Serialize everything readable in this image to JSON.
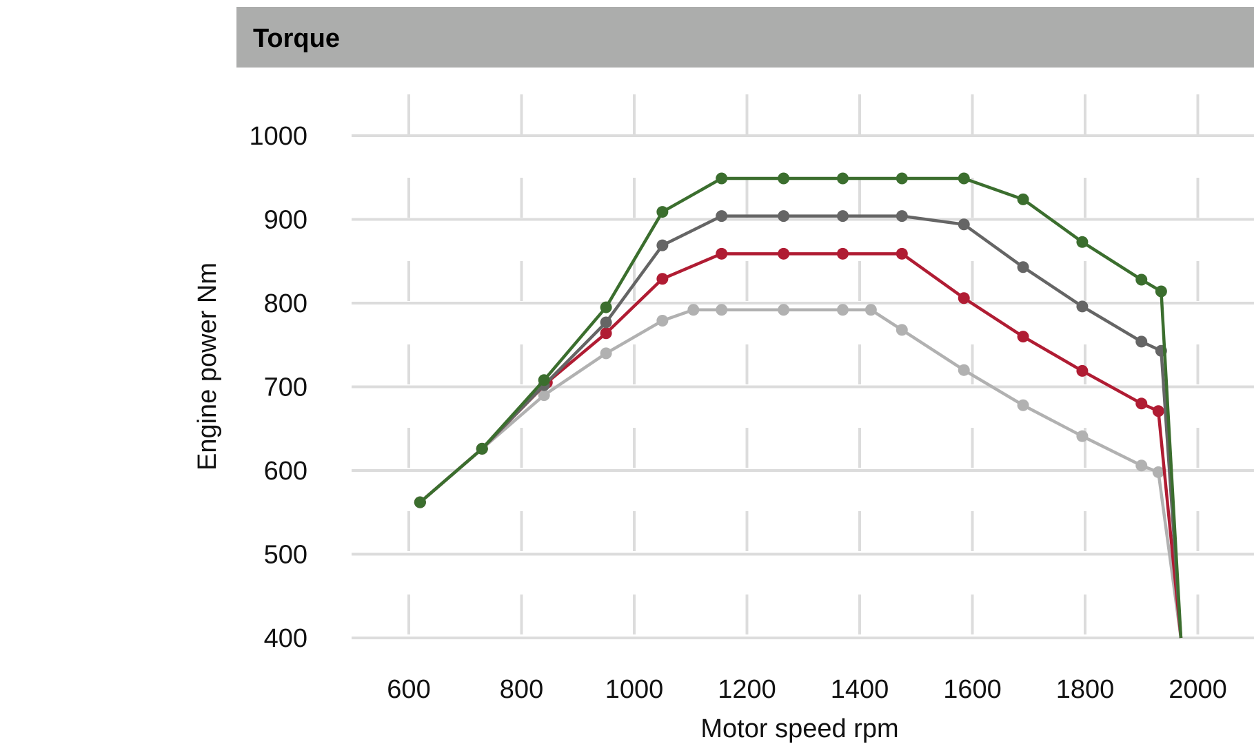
{
  "header": {
    "title": "Torque"
  },
  "chart_data": {
    "type": "line",
    "title": "Torque",
    "xlabel": "Motor speed rpm",
    "ylabel": "Engine power Nm",
    "xlim": [
      450,
      2100
    ],
    "ylim": [
      400,
      1050
    ],
    "x_ticks": [
      600,
      800,
      1000,
      1200,
      1400,
      1600,
      1800,
      2000
    ],
    "y_ticks": [
      400,
      500,
      600,
      700,
      800,
      900,
      1000
    ],
    "grid": true,
    "legend": "none",
    "series": [
      {
        "color": "#3b6e2e",
        "points": [
          [
            620,
            562
          ],
          [
            730,
            626
          ],
          [
            840,
            708
          ],
          [
            950,
            795
          ],
          [
            1050,
            909
          ],
          [
            1155,
            949
          ],
          [
            1265,
            949
          ],
          [
            1370,
            949
          ],
          [
            1475,
            949
          ],
          [
            1585,
            949
          ],
          [
            1690,
            924
          ],
          [
            1795,
            873
          ],
          [
            1900,
            828
          ],
          [
            1935,
            814
          ],
          [
            1970,
            400
          ]
        ]
      },
      {
        "color": "#656565",
        "points": [
          [
            620,
            562
          ],
          [
            730,
            626
          ],
          [
            840,
            702
          ],
          [
            950,
            777
          ],
          [
            1050,
            869
          ],
          [
            1155,
            904
          ],
          [
            1265,
            904
          ],
          [
            1370,
            904
          ],
          [
            1475,
            904
          ],
          [
            1585,
            894
          ],
          [
            1690,
            843
          ],
          [
            1795,
            796
          ],
          [
            1900,
            754
          ],
          [
            1935,
            743
          ],
          [
            1970,
            400
          ]
        ]
      },
      {
        "color": "#b01c33",
        "points": [
          [
            620,
            562
          ],
          [
            730,
            626
          ],
          [
            845,
            705
          ],
          [
            950,
            764
          ],
          [
            1050,
            829
          ],
          [
            1155,
            859
          ],
          [
            1265,
            859
          ],
          [
            1370,
            859
          ],
          [
            1475,
            859
          ],
          [
            1585,
            806
          ],
          [
            1690,
            760
          ],
          [
            1795,
            719
          ],
          [
            1900,
            680
          ],
          [
            1930,
            671
          ],
          [
            1970,
            400
          ]
        ]
      },
      {
        "color": "#b1b1b1",
        "points": [
          [
            620,
            562
          ],
          [
            730,
            626
          ],
          [
            840,
            690
          ],
          [
            950,
            740
          ],
          [
            1050,
            779
          ],
          [
            1105,
            792
          ],
          [
            1155,
            792
          ],
          [
            1265,
            792
          ],
          [
            1370,
            792
          ],
          [
            1420,
            792
          ],
          [
            1475,
            768
          ],
          [
            1585,
            720
          ],
          [
            1690,
            678
          ],
          [
            1795,
            641
          ],
          [
            1900,
            606
          ],
          [
            1930,
            598
          ],
          [
            1970,
            400
          ]
        ]
      }
    ]
  }
}
